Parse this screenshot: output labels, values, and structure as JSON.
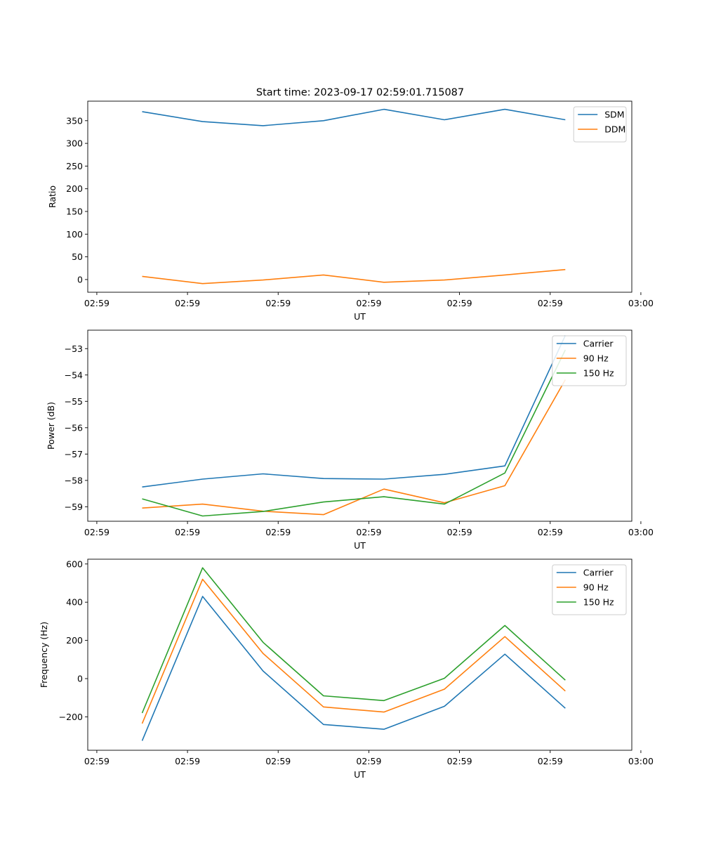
{
  "figure_title": "Start time: 2023-09-17 02:59:01.715087",
  "colors": {
    "c0": "#1f77b4",
    "c1": "#ff7f0e",
    "c2": "#2ca02c"
  },
  "chart_data": [
    {
      "type": "line",
      "xlabel": "UT",
      "ylabel": "Ratio",
      "xlim": [
        -0.9,
        8.1
      ],
      "ylim": [
        -28,
        393
      ],
      "x": [
        0,
        1,
        2,
        3,
        4,
        5,
        6,
        7
      ],
      "x_ticks": [
        -0.75,
        0.75,
        2.25,
        3.75,
        5.25,
        6.75,
        8.25
      ],
      "x_tick_labels": [
        "02:59",
        "02:59",
        "02:59",
        "02:59",
        "02:59",
        "02:59",
        "03:00"
      ],
      "y_ticks": [
        0,
        50,
        100,
        150,
        200,
        250,
        300,
        350
      ],
      "y_tick_labels": [
        "0",
        "50",
        "100",
        "150",
        "200",
        "250",
        "300",
        "350"
      ],
      "legend_position": "top-right",
      "series": [
        {
          "name": "SDM",
          "color": "#1f77b4",
          "values": [
            370,
            348,
            339,
            350,
            375,
            352,
            375,
            352
          ]
        },
        {
          "name": "DDM",
          "color": "#ff7f0e",
          "values": [
            7,
            -9,
            -1,
            10,
            -6,
            -1,
            10,
            22
          ]
        }
      ]
    },
    {
      "type": "line",
      "xlabel": "UT",
      "ylabel": "Power (dB)",
      "xlim": [
        -0.9,
        8.1
      ],
      "ylim": [
        -59.55,
        -52.3
      ],
      "x": [
        0,
        1,
        2,
        3,
        4,
        5,
        6,
        7
      ],
      "x_ticks": [
        -0.75,
        0.75,
        2.25,
        3.75,
        5.25,
        6.75,
        8.25
      ],
      "x_tick_labels": [
        "02:59",
        "02:59",
        "02:59",
        "02:59",
        "02:59",
        "02:59",
        "03:00"
      ],
      "y_ticks": [
        -59,
        -58,
        -57,
        -56,
        -55,
        -54,
        -53
      ],
      "y_tick_labels": [
        "−59",
        "−58",
        "−57",
        "−56",
        "−55",
        "−54",
        "−53"
      ],
      "legend_position": "top-right",
      "series": [
        {
          "name": "Carrier",
          "color": "#1f77b4",
          "values": [
            -58.25,
            -57.95,
            -57.75,
            -57.93,
            -57.95,
            -57.77,
            -57.45,
            -52.5
          ]
        },
        {
          "name": "90 Hz",
          "color": "#ff7f0e",
          "values": [
            -59.05,
            -58.9,
            -59.17,
            -59.3,
            -58.33,
            -58.85,
            -58.2,
            -54.18
          ]
        },
        {
          "name": "150 Hz",
          "color": "#2ca02c",
          "values": [
            -58.7,
            -59.35,
            -59.18,
            -58.82,
            -58.62,
            -58.9,
            -57.72,
            -53.05
          ]
        }
      ]
    },
    {
      "type": "line",
      "xlabel": "UT",
      "ylabel": "Frequency (Hz)",
      "xlim": [
        -0.9,
        8.1
      ],
      "ylim": [
        -375,
        625
      ],
      "x": [
        0,
        1,
        2,
        3,
        4,
        5,
        6,
        7
      ],
      "x_ticks": [
        -0.75,
        0.75,
        2.25,
        3.75,
        5.25,
        6.75,
        8.25
      ],
      "x_tick_labels": [
        "02:59",
        "02:59",
        "02:59",
        "02:59",
        "02:59",
        "02:59",
        "03:00"
      ],
      "y_ticks": [
        -200,
        0,
        200,
        400,
        600
      ],
      "y_tick_labels": [
        "−200",
        "0",
        "200",
        "400",
        "600"
      ],
      "legend_position": "top-right",
      "series": [
        {
          "name": "Carrier",
          "color": "#1f77b4",
          "values": [
            -325,
            430,
            40,
            -240,
            -265,
            -145,
            128,
            -155
          ]
        },
        {
          "name": "90 Hz",
          "color": "#ff7f0e",
          "values": [
            -235,
            520,
            132,
            -148,
            -175,
            -55,
            220,
            -65
          ]
        },
        {
          "name": "150 Hz",
          "color": "#2ca02c",
          "values": [
            -180,
            580,
            190,
            -90,
            -115,
            2,
            278,
            -8
          ]
        }
      ]
    }
  ]
}
